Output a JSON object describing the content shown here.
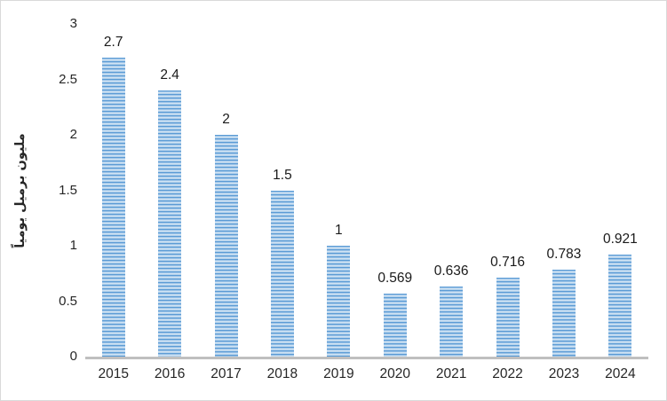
{
  "chart_data": {
    "type": "bar",
    "title": "",
    "xlabel": "",
    "ylabel": "مليون برميل يومياً",
    "categories": [
      "2015",
      "2016",
      "2017",
      "2018",
      "2019",
      "2020",
      "2021",
      "2022",
      "2023",
      "2024"
    ],
    "values": [
      2.7,
      2.4,
      2,
      1.5,
      1,
      0.569,
      0.636,
      0.716,
      0.783,
      0.921
    ],
    "value_labels": [
      "2.7",
      "2.4",
      "2",
      "1.5",
      "1",
      "0.569",
      "0.636",
      "0.716",
      "0.783",
      "0.921"
    ],
    "ylim": [
      0,
      3
    ],
    "yticks": [
      0,
      0.5,
      1,
      1.5,
      2,
      2.5,
      3
    ],
    "ytick_labels": [
      "0",
      "0.5",
      "1",
      "1.5",
      "2",
      "2.5",
      "3"
    ],
    "grid": false,
    "legend": "none",
    "bar_color": "#5B9BD5",
    "bar_pattern": "horizontal-lines",
    "axis_line_color": "#BFBFBF",
    "text_color": "#262626"
  }
}
